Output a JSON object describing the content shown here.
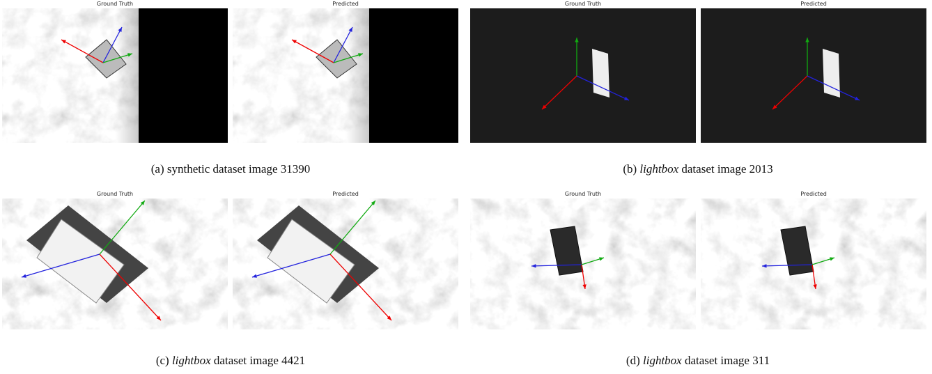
{
  "panels": [
    {
      "label": "(a)",
      "emphasis": null,
      "text": "synthetic dataset image 31390",
      "images": [
        {
          "title": "Ground Truth"
        },
        {
          "title": "Predicted"
        }
      ]
    },
    {
      "label": "(b)",
      "emphasis": "lightbox",
      "text": "dataset image 2013",
      "images": [
        {
          "title": "Ground Truth"
        },
        {
          "title": "Predicted"
        }
      ]
    },
    {
      "label": "(c)",
      "emphasis": "lightbox",
      "text": "dataset image 4421",
      "images": [
        {
          "title": "Ground Truth"
        },
        {
          "title": "Predicted"
        }
      ]
    },
    {
      "label": "(d)",
      "emphasis": "lightbox",
      "text": "dataset image 311",
      "images": [
        {
          "title": "Ground Truth"
        },
        {
          "title": "Predicted"
        }
      ]
    }
  ]
}
